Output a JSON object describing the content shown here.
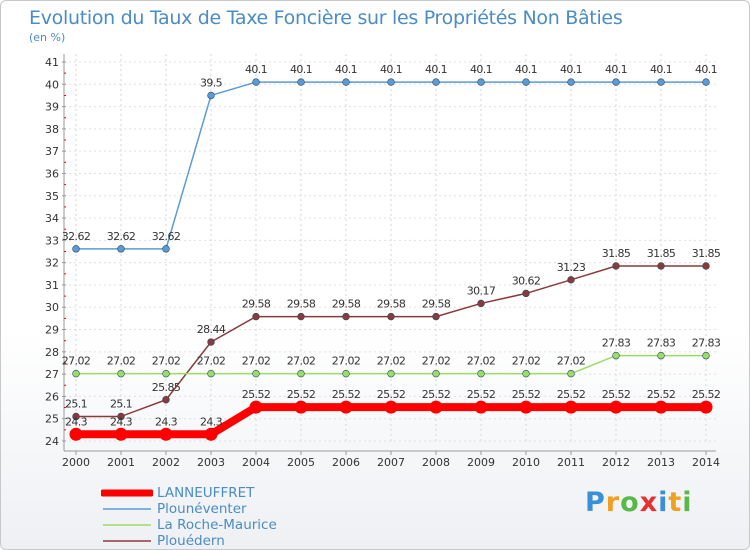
{
  "header": {
    "title": "Evolution du Taux de Taxe Foncière sur les Propriétés Non Bâties",
    "unit": "(en %)"
  },
  "logo": {
    "letters": [
      "P",
      "r",
      "o",
      "x",
      "i",
      "t",
      "i"
    ],
    "colors": [
      "#3a8fd8",
      "#f0a020",
      "#58b848",
      "#e83030",
      "#3a8fd8",
      "#f0a020",
      "#58b848"
    ]
  },
  "legend": {
    "items": [
      {
        "label": "LANNEUFFRET",
        "color": "#ff0000"
      },
      {
        "label": "Plounéventer",
        "color": "#5b9bd5"
      },
      {
        "label": "La Roche-Maurice",
        "color": "#99dd66"
      },
      {
        "label": "Plouédern",
        "color": "#8b3a3a"
      }
    ]
  },
  "chart_data": {
    "type": "line",
    "title": "Evolution du Taux de Taxe Foncière sur les Propriétés Non Bâties",
    "ylabel": "(en %)",
    "xlabel": "",
    "ylim": [
      24,
      41
    ],
    "yticks": [
      "24",
      "25",
      "26",
      "27",
      "28",
      "29",
      "30",
      "31",
      "32",
      "33",
      "34",
      "35",
      "36",
      "37",
      "38",
      "39",
      "40",
      "41"
    ],
    "categories": [
      "2000",
      "2001",
      "2002",
      "2003",
      "2004",
      "2005",
      "2006",
      "2007",
      "2008",
      "2009",
      "2010",
      "2011",
      "2012",
      "2013",
      "2014"
    ],
    "series": [
      {
        "name": "Plounéventer",
        "color": "#5b9bd5",
        "values": [
          32.62,
          32.62,
          32.62,
          39.5,
          40.1,
          40.1,
          40.1,
          40.1,
          40.1,
          40.1,
          40.1,
          40.1,
          40.1,
          40.1,
          40.1
        ],
        "labels": [
          "32.62",
          "32.62",
          "32.62",
          "39.5",
          "40.1",
          "40.1",
          "40.1",
          "40.1",
          "40.1",
          "40.1",
          "40.1",
          "40.1",
          "40.1",
          "40.1",
          "40.1"
        ]
      },
      {
        "name": "Plouédern",
        "color": "#8b3a3a",
        "values": [
          25.1,
          25.1,
          25.85,
          28.44,
          29.58,
          29.58,
          29.58,
          29.58,
          29.58,
          30.17,
          30.62,
          31.23,
          31.85,
          31.85,
          31.85
        ],
        "labels": [
          "25.1",
          "25.1",
          "25.85",
          "28.44",
          "29.58",
          "29.58",
          "29.58",
          "29.58",
          "29.58",
          "30.17",
          "30.62",
          "31.23",
          "31.85",
          "31.85",
          "31.85"
        ]
      },
      {
        "name": "La Roche-Maurice",
        "color": "#99dd66",
        "values": [
          27.02,
          27.02,
          27.02,
          27.02,
          27.02,
          27.02,
          27.02,
          27.02,
          27.02,
          27.02,
          27.02,
          27.02,
          27.83,
          27.83,
          27.83
        ],
        "labels": [
          "27.02",
          "27.02",
          "27.02",
          "27.02",
          "27.02",
          "27.02",
          "27.02",
          "27.02",
          "27.02",
          "27.02",
          "27.02",
          "27.02",
          "27.83",
          "27.83",
          "27.83"
        ]
      },
      {
        "name": "LANNEUFFRET",
        "color": "#ff0000",
        "values": [
          24.3,
          24.3,
          24.3,
          24.3,
          25.52,
          25.52,
          25.52,
          25.52,
          25.52,
          25.52,
          25.52,
          25.52,
          25.52,
          25.52,
          25.52
        ],
        "labels": [
          "24.3",
          "24.3",
          "24.3",
          "24.3",
          "25.52",
          "25.52",
          "25.52",
          "25.52",
          "25.52",
          "25.52",
          "25.52",
          "25.52",
          "25.52",
          "25.52",
          "25.52"
        ]
      }
    ]
  }
}
